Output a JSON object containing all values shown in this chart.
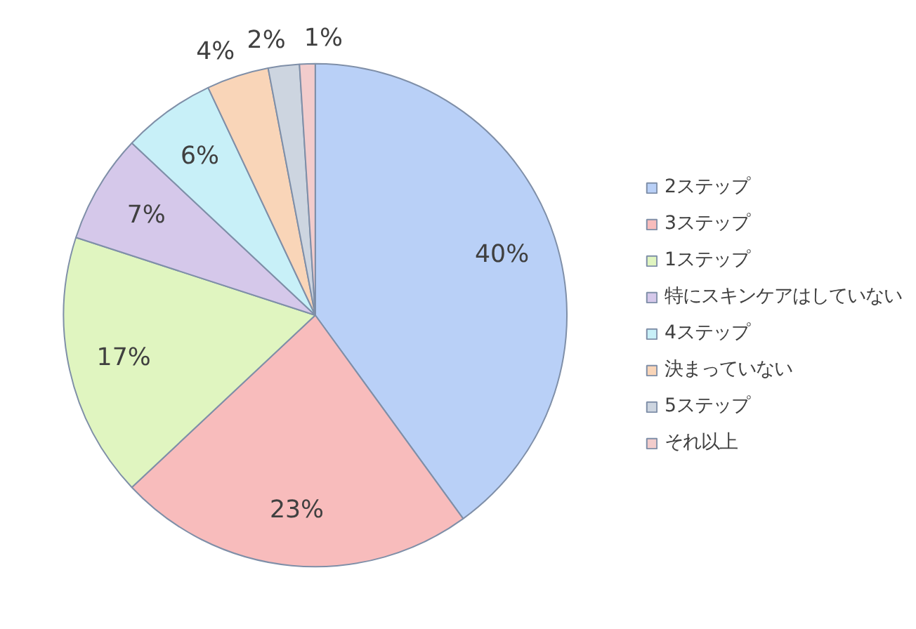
{
  "chart_data": {
    "type": "pie",
    "categories": [
      "2ステップ",
      "3ステップ",
      "1ステップ",
      "特にスキンケアはしていない",
      "4ステップ",
      "決まっていない",
      "5ステップ",
      "それ以上"
    ],
    "values": [
      40,
      23,
      17,
      7,
      6,
      4,
      2,
      1
    ],
    "value_labels": [
      "40%",
      "23%",
      "17%",
      "7%",
      "6%",
      "4%",
      "2%",
      "1%"
    ],
    "colors": [
      "#b9d0f7",
      "#f8bcbc",
      "#e0f5c0",
      "#d5c8ea",
      "#c8f0f8",
      "#f9d5b8",
      "#cdd5e0",
      "#f2cccc"
    ],
    "legend": "right"
  }
}
